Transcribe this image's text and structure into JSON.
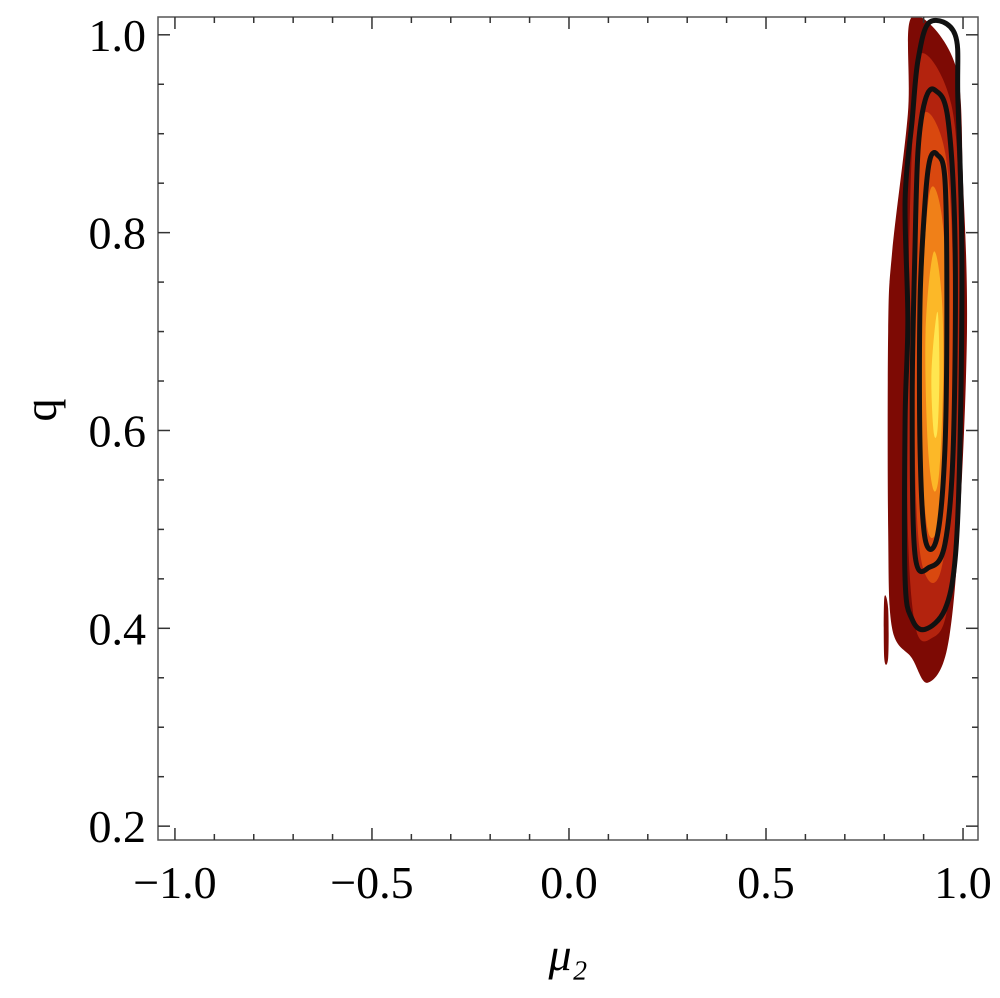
{
  "chart_data": {
    "type": "density",
    "xlabel": "μ₂",
    "ylabel": "q",
    "xlim": [
      -1.043,
      1.038
    ],
    "ylim": [
      0.186,
      1.018
    ],
    "xticks": [
      {
        "value": -1,
        "label": "−1.0"
      },
      {
        "value": -0.5,
        "label": "−0.5"
      },
      {
        "value": 0,
        "label": "0.0"
      },
      {
        "value": 0.5,
        "label": "0.5"
      },
      {
        "value": 1,
        "label": "1.0"
      }
    ],
    "yticks": [
      {
        "value": 0.2,
        "label": "0.2"
      },
      {
        "value": 0.4,
        "label": "0.4"
      },
      {
        "value": 0.6,
        "label": "0.6"
      },
      {
        "value": 0.8,
        "label": "0.8"
      },
      {
        "value": 1,
        "label": "1.0"
      }
    ],
    "regions": [
      {
        "color": "#7d0a04",
        "x": [
          0.87,
          0.98,
          1.0,
          1.01,
          0.99,
          0.96,
          0.91,
          0.87,
          0.82,
          0.81,
          0.81,
          0.82,
          0.86
        ],
        "y": [
          1.018,
          0.97,
          0.85,
          0.7,
          0.5,
          0.38,
          0.345,
          0.37,
          0.4,
          0.5,
          0.7,
          0.78,
          0.92
        ]
      },
      {
        "color": "#7d0a04",
        "x": [
          0.8,
          0.81,
          0.81,
          0.8
        ],
        "y": [
          0.43,
          0.42,
          0.37,
          0.37
        ]
      },
      {
        "color": "#b3230e",
        "x": [
          0.89,
          0.97,
          0.99,
          0.985,
          0.96,
          0.92,
          0.88,
          0.86,
          0.86,
          0.87
        ],
        "y": [
          0.98,
          0.93,
          0.8,
          0.55,
          0.42,
          0.39,
          0.4,
          0.5,
          0.7,
          0.88
        ]
      },
      {
        "color": "#d9480f",
        "x": [
          0.9,
          0.955,
          0.975,
          0.97,
          0.945,
          0.91,
          0.885,
          0.875,
          0.88
        ],
        "y": [
          0.92,
          0.88,
          0.75,
          0.55,
          0.46,
          0.45,
          0.5,
          0.65,
          0.83
        ]
      },
      {
        "color": "#f08018",
        "x": [
          0.915,
          0.945,
          0.96,
          0.955,
          0.935,
          0.91,
          0.895,
          0.895
        ],
        "y": [
          0.84,
          0.82,
          0.72,
          0.56,
          0.5,
          0.5,
          0.58,
          0.72
        ]
      },
      {
        "color": "#fcb828",
        "x": [
          0.925,
          0.945,
          0.95,
          0.94,
          0.925,
          0.91,
          0.905
        ],
        "y": [
          0.78,
          0.74,
          0.66,
          0.56,
          0.54,
          0.59,
          0.7
        ]
      },
      {
        "color": "#ffe650",
        "x": [
          0.935,
          0.94,
          0.935,
          0.925,
          0.92
        ],
        "y": [
          0.72,
          0.66,
          0.6,
          0.6,
          0.66
        ]
      }
    ],
    "contours": [
      {
        "color": "#111111",
        "x": [
          0.916,
          0.98,
          0.987,
          0.997,
          0.992,
          0.98,
          0.954,
          0.904,
          0.871,
          0.853,
          0.853,
          0.86,
          0.853,
          0.871,
          0.886
        ],
        "y": [
          1.013,
          1.0,
          0.934,
          0.783,
          0.581,
          0.47,
          0.419,
          0.399,
          0.409,
          0.449,
          0.611,
          0.712,
          0.833,
          0.914,
          0.975
        ]
      },
      {
        "color": "#111111",
        "x": [
          0.929,
          0.962,
          0.98,
          0.975,
          0.954,
          0.916,
          0.878,
          0.871,
          0.878,
          0.886,
          0.904
        ],
        "y": [
          0.944,
          0.914,
          0.783,
          0.581,
          0.485,
          0.462,
          0.475,
          0.631,
          0.783,
          0.884,
          0.934
        ]
      },
      {
        "color": "#111111",
        "x": [
          0.934,
          0.954,
          0.959,
          0.954,
          0.934,
          0.904,
          0.891,
          0.891,
          0.904,
          0.916
        ],
        "y": [
          0.879,
          0.854,
          0.732,
          0.581,
          0.492,
          0.49,
          0.581,
          0.732,
          0.833,
          0.874
        ]
      }
    ]
  }
}
